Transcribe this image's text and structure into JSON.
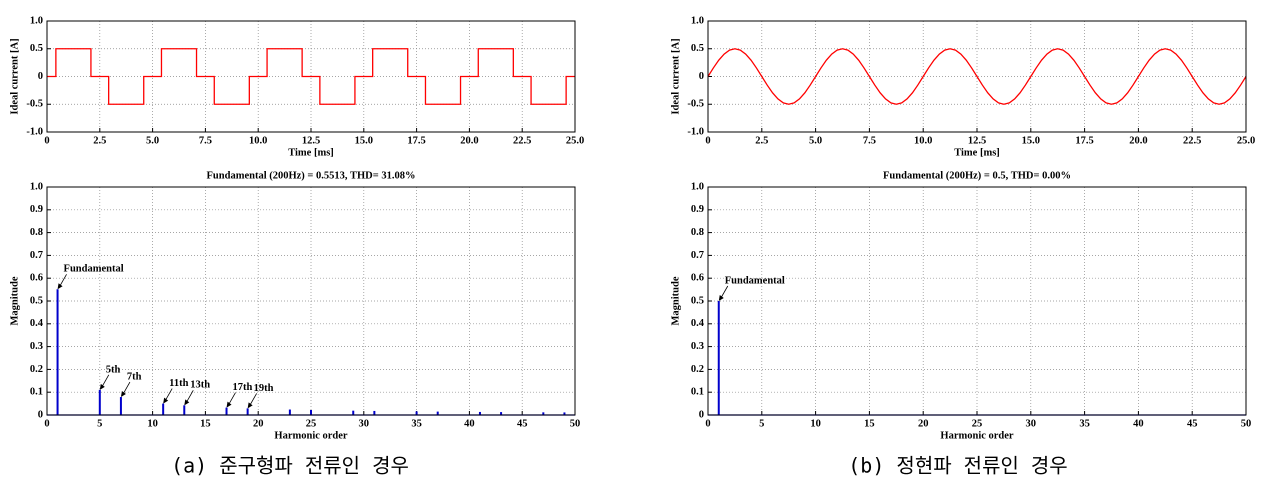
{
  "chart_data": [
    {
      "type": "line",
      "xlabel": "Time [ms]",
      "ylabel": "Ideal current [A]",
      "grid": true,
      "xlim": [
        0,
        25
      ],
      "ylim": [
        -1,
        1
      ],
      "xticks": [
        0,
        2.5,
        {
          "value": 5,
          "label": "5.0"
        },
        7.5,
        {
          "value": 10,
          "label": "10.0"
        },
        12.5,
        {
          "value": 15,
          "label": "15.0"
        },
        17.5,
        {
          "value": 20,
          "label": "20.0"
        },
        22.5,
        {
          "value": 25,
          "label": "25.0"
        }
      ],
      "yticks": [
        {
          "value": -1,
          "label": "-1.0"
        },
        -0.5,
        0,
        0.5,
        {
          "value": 1,
          "label": "1.0"
        }
      ],
      "x": [
        0,
        0.42,
        0.42,
        2.08,
        2.08,
        2.92,
        2.92,
        4.58,
        4.58,
        5.42,
        5.42,
        7.08,
        7.08,
        7.92,
        7.92,
        9.58,
        9.58,
        10.42,
        10.42,
        12.08,
        12.08,
        12.92,
        12.92,
        14.58,
        14.58,
        15.42,
        15.42,
        17.08,
        17.08,
        17.92,
        17.92,
        19.58,
        19.58,
        20.42,
        20.42,
        22.08,
        22.08,
        22.92,
        22.92,
        24.58,
        24.58,
        25
      ],
      "series": [
        {
          "color": "#ff0000",
          "values": [
            0,
            0,
            0.5,
            0.5,
            0,
            0,
            -0.5,
            -0.5,
            0,
            0,
            0.5,
            0.5,
            0,
            0,
            -0.5,
            -0.5,
            0,
            0,
            0.5,
            0.5,
            0,
            0,
            -0.5,
            -0.5,
            0,
            0,
            0.5,
            0.5,
            0,
            0,
            -0.5,
            -0.5,
            0,
            0,
            0.5,
            0.5,
            0,
            0,
            -0.5,
            -0.5,
            0,
            0
          ]
        }
      ]
    },
    {
      "type": "line",
      "xlabel": "Time [ms]",
      "ylabel": "Ideal current [A]",
      "grid": true,
      "xlim": [
        0,
        25
      ],
      "ylim": [
        -1,
        1
      ],
      "xticks": [
        0,
        2.5,
        {
          "value": 5,
          "label": "5.0"
        },
        7.5,
        {
          "value": 10,
          "label": "10.0"
        },
        12.5,
        {
          "value": 15,
          "label": "15.0"
        },
        17.5,
        {
          "value": 20,
          "label": "20.0"
        },
        22.5,
        {
          "value": 25,
          "label": "25.0"
        }
      ],
      "yticks": [
        {
          "value": -1,
          "label": "-1.0"
        },
        -0.5,
        0,
        0.5,
        {
          "value": 1,
          "label": "1.0"
        }
      ],
      "x": [
        0,
        0.25,
        0.5,
        0.75,
        1,
        1.25,
        1.5,
        1.75,
        2,
        2.25,
        2.5,
        2.75,
        3,
        3.25,
        3.5,
        3.75,
        4,
        4.25,
        4.5,
        4.75,
        5,
        5.25,
        5.5,
        5.75,
        6,
        6.25,
        6.5,
        6.75,
        7,
        7.25,
        7.5,
        7.75,
        8,
        8.25,
        8.5,
        8.75,
        9,
        9.25,
        9.5,
        9.75,
        10,
        10.25,
        10.5,
        10.75,
        11,
        11.25,
        11.5,
        11.75,
        12,
        12.25,
        12.5,
        12.75,
        13,
        13.25,
        13.5,
        13.75,
        14,
        14.25,
        14.5,
        14.75,
        15,
        15.25,
        15.5,
        15.75,
        16,
        16.25,
        16.5,
        16.75,
        17,
        17.25,
        17.5,
        17.75,
        18,
        18.25,
        18.5,
        18.75,
        19,
        19.25,
        19.5,
        19.75,
        20,
        20.25,
        20.5,
        20.75,
        21,
        21.25,
        21.5,
        21.75,
        22,
        22.25,
        22.5,
        22.75,
        23,
        23.25,
        23.5,
        23.75,
        24,
        24.25,
        24.5,
        24.75,
        25
      ],
      "series": [
        {
          "color": "#ff0000",
          "values": [
            0,
            0.1545,
            0.2939,
            0.4045,
            0.4755,
            0.5,
            0.4755,
            0.4045,
            0.2939,
            0.1545,
            0,
            -0.1545,
            -0.2939,
            -0.4045,
            -0.4755,
            -0.5,
            -0.4755,
            -0.4045,
            -0.2939,
            -0.1545,
            0,
            0.1545,
            0.2939,
            0.4045,
            0.4755,
            0.5,
            0.4755,
            0.4045,
            0.2939,
            0.1545,
            0,
            -0.1545,
            -0.2939,
            -0.4045,
            -0.4755,
            -0.5,
            -0.4755,
            -0.4045,
            -0.2939,
            -0.1545,
            0,
            0.1545,
            0.2939,
            0.4045,
            0.4755,
            0.5,
            0.4755,
            0.4045,
            0.2939,
            0.1545,
            0,
            -0.1545,
            -0.2939,
            -0.4045,
            -0.4755,
            -0.5,
            -0.4755,
            -0.4045,
            -0.2939,
            -0.1545,
            0,
            0.1545,
            0.2939,
            0.4045,
            0.4755,
            0.5,
            0.4755,
            0.4045,
            0.2939,
            0.1545,
            0,
            -0.1545,
            -0.2939,
            -0.4045,
            -0.4755,
            -0.5,
            -0.4755,
            -0.4045,
            -0.2939,
            -0.1545,
            0,
            0.1545,
            0.2939,
            0.4045,
            0.4755,
            0.5,
            0.4755,
            0.4045,
            0.2939,
            0.1545,
            0,
            -0.1545,
            -0.2939,
            -0.4045,
            -0.4755,
            -0.5,
            -0.4755,
            -0.4045,
            -0.2939,
            -0.1545,
            0
          ]
        }
      ]
    },
    {
      "type": "stem",
      "title": "Fundamental (200Hz) = 0.5513, THD= 31.08%",
      "xlabel": "Harmonic order",
      "ylabel": "Magnitude",
      "grid": true,
      "xlim": [
        0,
        50
      ],
      "ylim": [
        0,
        1
      ],
      "xticks": [
        0,
        5,
        10,
        15,
        20,
        25,
        30,
        35,
        40,
        45,
        50
      ],
      "yticks": [
        0,
        0.1,
        0.2,
        0.3,
        0.4,
        0.5,
        0.6,
        0.7,
        0.8,
        0.9,
        {
          "value": 1,
          "label": "1.0"
        }
      ],
      "x": [
        1,
        5,
        7,
        11,
        13,
        17,
        19,
        23,
        25,
        29,
        31,
        35,
        37,
        41,
        43,
        47,
        49
      ],
      "series": [
        {
          "color": "#0000cc",
          "values": [
            0.5513,
            0.1103,
            0.0788,
            0.0501,
            0.0424,
            0.0324,
            0.029,
            0.024,
            0.022,
            0.019,
            0.0178,
            0.0158,
            0.0149,
            0.0134,
            0.0128,
            0.0117,
            0.0113
          ]
        }
      ],
      "annotations": [
        "Fundamental",
        "5th",
        "7th",
        "11th",
        "13th",
        "17th",
        "19th"
      ]
    },
    {
      "type": "stem",
      "title": "Fundamental (200Hz) = 0.5, THD= 0.00%",
      "xlabel": "Harmonic order",
      "ylabel": "Magnitude",
      "grid": true,
      "xlim": [
        0,
        50
      ],
      "ylim": [
        0,
        1
      ],
      "xticks": [
        0,
        5,
        10,
        15,
        20,
        25,
        30,
        35,
        40,
        45,
        50
      ],
      "yticks": [
        0,
        0.1,
        0.2,
        0.3,
        0.4,
        0.5,
        0.6,
        0.7,
        0.8,
        0.9,
        {
          "value": 1,
          "label": "1.0"
        }
      ],
      "x": [
        1
      ],
      "series": [
        {
          "color": "#0000cc",
          "values": [
            0.5
          ]
        }
      ],
      "annotations": [
        "Fundamental"
      ]
    }
  ],
  "captions": [
    "(a) 준구형파 전류인 경우",
    "(b) 정현파 전류인 경우"
  ]
}
